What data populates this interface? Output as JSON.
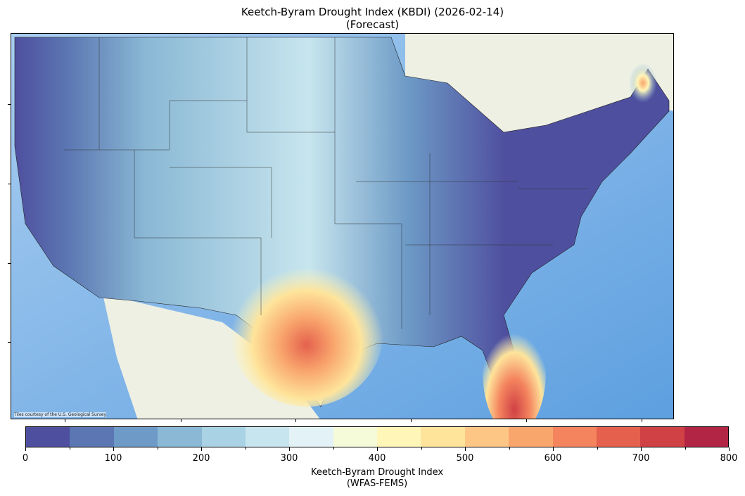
{
  "title": "Keetch-Byram Drought Index (KBDI) (2026-02-14)",
  "subtitle": "(Forecast)",
  "map": {
    "attribution": "Tiles courtesy of the U.S. Geological Survey",
    "basemap_colors": {
      "ocean": "#6aa7e3",
      "land": "#eef0e4",
      "lakes": "#a9cff0"
    }
  },
  "colorbar": {
    "label": "Keetch-Byram Drought Index",
    "label2": "(WFAS-FEMS)",
    "ticks": [
      "0",
      "100",
      "200",
      "300",
      "400",
      "500",
      "600",
      "700",
      "800"
    ],
    "range": [
      0,
      800
    ],
    "bin_width": 50,
    "colors": [
      "#4f4f9f",
      "#5b76b2",
      "#6d9ac6",
      "#8ab8d5",
      "#a9d2e4",
      "#c7e5ee",
      "#e3f2f6",
      "#f5fbd8",
      "#fff6b8",
      "#fee49b",
      "#fdc685",
      "#f9a66d",
      "#f4845e",
      "#e5614d",
      "#d04145",
      "#b22545"
    ]
  }
}
